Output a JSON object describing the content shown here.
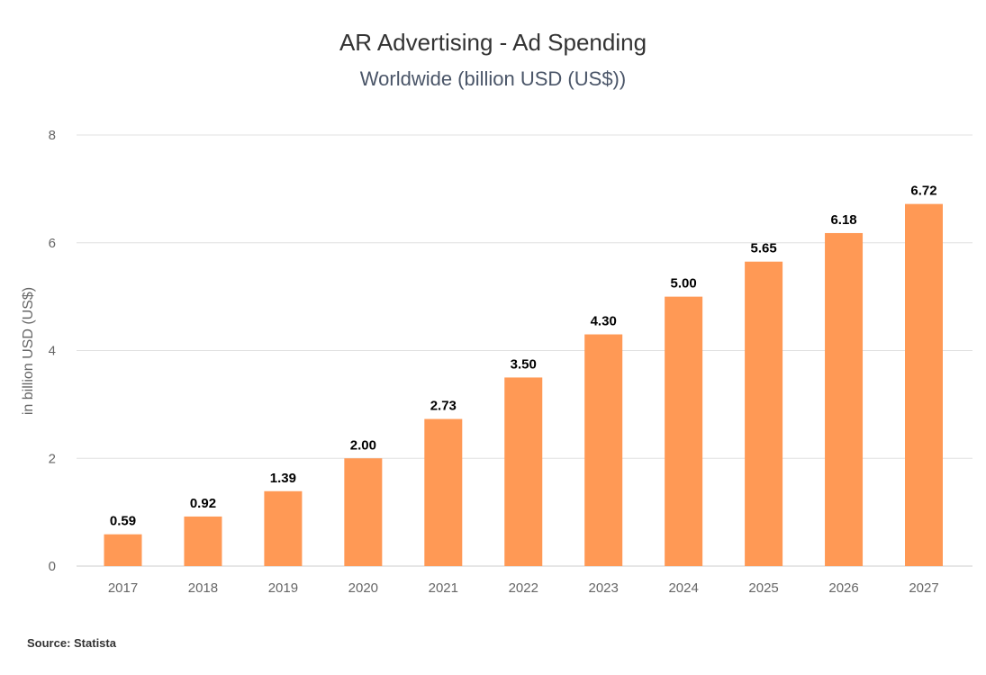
{
  "title": "AR Advertising - Ad Spending",
  "subtitle": "Worldwide (billion USD (US$))",
  "source": "Source: Statista",
  "colors": {
    "bar": "#ff9955",
    "grid": "#e0e0e0",
    "axis_text": "#666666",
    "label": "#000000"
  },
  "chart_data": {
    "type": "bar",
    "title": "AR Advertising - Ad Spending",
    "subtitle": "Worldwide (billion USD (US$))",
    "xlabel": "",
    "ylabel": "in billion USD (US$)",
    "categories": [
      "2017",
      "2018",
      "2019",
      "2020",
      "2021",
      "2022",
      "2023",
      "2024",
      "2025",
      "2026",
      "2027"
    ],
    "values": [
      0.59,
      0.92,
      1.39,
      2.0,
      2.73,
      3.5,
      4.3,
      5.0,
      5.65,
      6.18,
      6.72
    ],
    "value_labels": [
      "0.59",
      "0.92",
      "1.39",
      "2.00",
      "2.73",
      "3.50",
      "4.30",
      "5.00",
      "5.65",
      "6.18",
      "6.72"
    ],
    "ylim": [
      0,
      8
    ],
    "yticks": [
      0,
      2,
      4,
      6,
      8
    ],
    "grid": true,
    "legend": "none"
  }
}
